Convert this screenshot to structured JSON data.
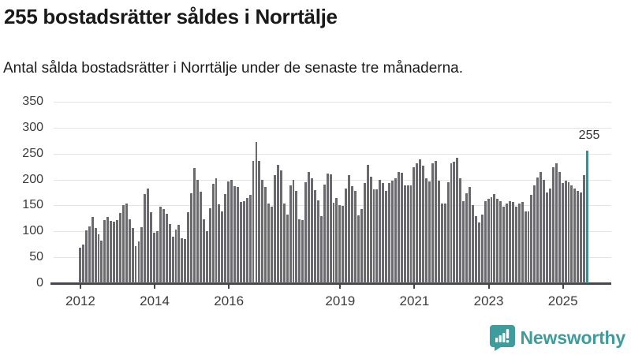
{
  "header": {
    "title": "255 bostadsrätter såldes i Norrtälje",
    "subtitle": "Antal sålda bostadsrätter i Norrtälje under de senaste tre månaderna."
  },
  "chart_data": {
    "type": "bar",
    "title": "255 bostadsrätter såldes i Norrtälje",
    "description": "Antal sålda bostadsrätter i Norrtälje under de senaste tre månaderna.",
    "frequency": "monthly",
    "start": "2012-01",
    "end": "2025-09",
    "ylim": [
      0,
      350
    ],
    "yticks": [
      0,
      50,
      100,
      150,
      200,
      250,
      300,
      350
    ],
    "grid": "horizontal",
    "bar_color": "#69696e",
    "highlight": {
      "index": 164,
      "value": 255,
      "label": "255",
      "color": "#14a0a1"
    },
    "xticks": [
      {
        "label": "2012",
        "index": 0
      },
      {
        "label": "2014",
        "index": 24
      },
      {
        "label": "2016",
        "index": 48
      },
      {
        "label": "2019",
        "index": 84
      },
      {
        "label": "2021",
        "index": 108
      },
      {
        "label": "2023",
        "index": 132
      },
      {
        "label": "2025",
        "index": 156
      }
    ],
    "values": [
      68,
      75,
      102,
      110,
      128,
      107,
      95,
      82,
      122,
      128,
      120,
      118,
      121,
      135,
      150,
      153,
      124,
      106,
      72,
      80,
      108,
      172,
      183,
      137,
      97,
      100,
      147,
      143,
      134,
      114,
      90,
      103,
      112,
      87,
      85,
      137,
      174,
      222,
      200,
      177,
      124,
      100,
      145,
      192,
      203,
      152,
      139,
      172,
      197,
      200,
      187,
      185,
      156,
      159,
      165,
      170,
      236,
      272,
      236,
      200,
      185,
      153,
      148,
      208,
      228,
      218,
      153,
      133,
      188,
      199,
      178,
      124,
      122,
      195,
      215,
      202,
      180,
      160,
      130,
      190,
      212,
      210,
      155,
      165,
      150,
      149,
      183,
      208,
      187,
      178,
      131,
      143,
      193,
      229,
      205,
      181,
      181,
      199,
      193,
      178,
      194,
      198,
      202,
      215,
      213,
      188,
      188,
      188,
      224,
      232,
      239,
      226,
      202,
      197,
      232,
      236,
      198,
      154,
      154,
      195,
      231,
      234,
      242,
      203,
      158,
      173,
      186,
      150,
      130,
      117,
      132,
      158,
      163,
      166,
      172,
      163,
      158,
      148,
      154,
      158,
      157,
      148,
      154,
      157,
      138,
      139,
      170,
      188,
      204,
      214,
      200,
      175,
      183,
      223,
      232,
      214,
      194,
      198,
      195,
      188,
      183,
      178,
      175,
      209,
      255
    ]
  },
  "footer": {
    "brand": "Newsworthy",
    "brand_color": "#3e9c9c",
    "logo_icon": "bar-chart-speech-bubble-icon"
  }
}
